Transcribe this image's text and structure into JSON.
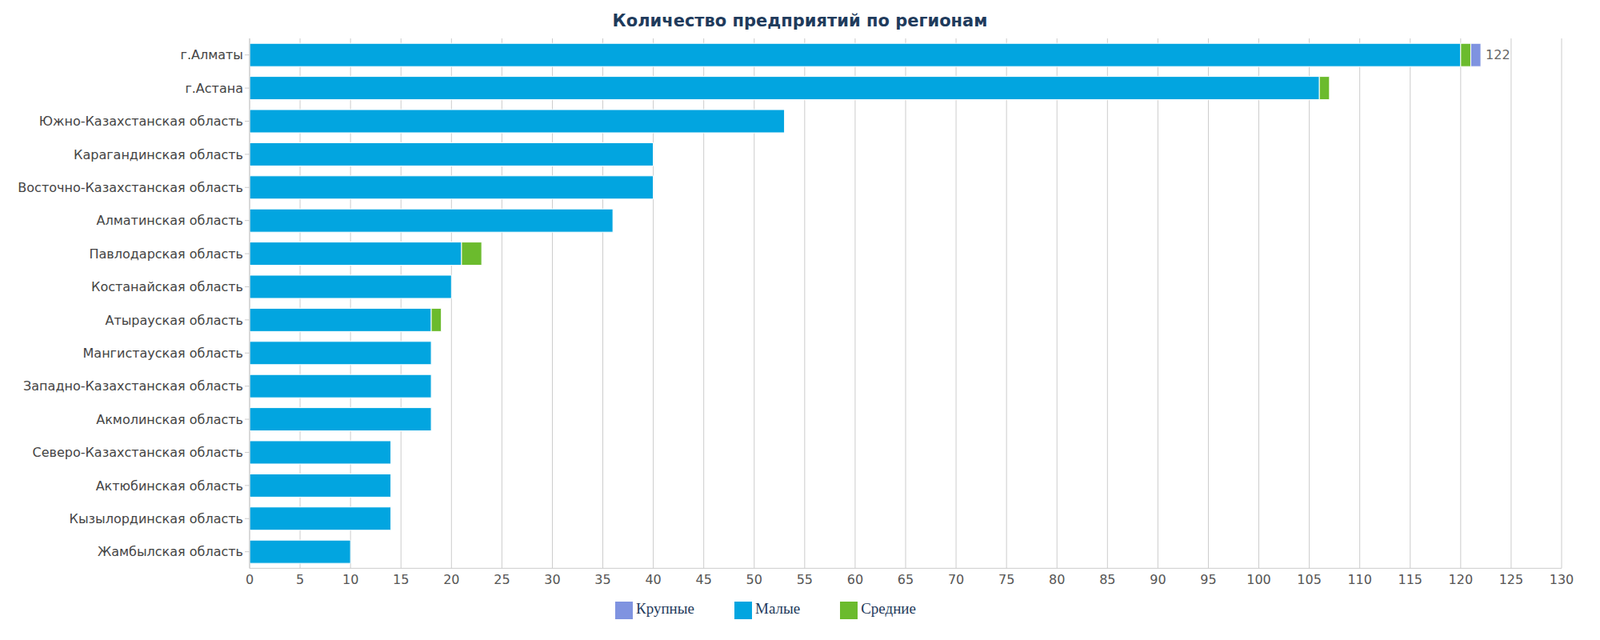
{
  "chart_data": {
    "type": "bar",
    "title": "Количество предприятий по регионам",
    "orientation": "horizontal",
    "stacked": true,
    "grid": true,
    "legend": "bottom",
    "data_labels": true,
    "categories": [
      "г.Алматы",
      "г.Астана",
      "Южно-Казахстанская область",
      "Карагандинская область",
      "Восточно-Казахстанская область",
      "Алматинская область",
      "Павлодарская область",
      "Костанайская область",
      "Атырауская область",
      "Мангистауская область",
      "Западно-Казахстанская область",
      "Акмолинская область",
      "Северо-Казахстанская область",
      "Актюбинская область",
      "Кызылординская область",
      "Жамбылская область"
    ],
    "series": [
      {
        "name": "Малые",
        "color": "#02a5e0",
        "values": [
          120,
          106,
          53,
          40,
          40,
          36,
          21,
          20,
          18,
          18,
          18,
          18,
          14,
          14,
          14,
          10
        ]
      },
      {
        "name": "Средние",
        "color": "#6bbb2d",
        "values": [
          1,
          1,
          0,
          0,
          0,
          0,
          2,
          0,
          1,
          0,
          0,
          0,
          0,
          0,
          0,
          0
        ]
      },
      {
        "name": "Крупные",
        "color": "#7f93e0",
        "values": [
          1,
          0,
          0,
          0,
          0,
          0,
          0,
          0,
          0,
          0,
          0,
          0,
          0,
          0,
          0,
          0
        ]
      }
    ],
    "totals": [
      122,
      107,
      53,
      40,
      40,
      36,
      23,
      20,
      19,
      18,
      18,
      18,
      14,
      14,
      14,
      10
    ],
    "xlim": [
      0,
      130
    ],
    "xticks": [
      0,
      5,
      10,
      15,
      20,
      25,
      30,
      35,
      40,
      45,
      50,
      55,
      60,
      65,
      70,
      75,
      80,
      85,
      90,
      95,
      100,
      105,
      110,
      115,
      120,
      125,
      130
    ]
  }
}
